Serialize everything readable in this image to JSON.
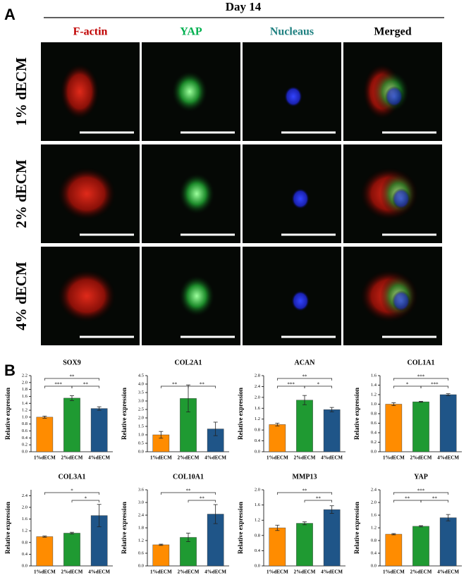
{
  "panel_a": {
    "label": "A",
    "title": "Day 14",
    "columns": [
      "F-actin",
      "YAP",
      "Nucleaus",
      "Merged"
    ],
    "rows": [
      "1% dECM",
      "2% dECM",
      "4% dECM"
    ]
  },
  "panel_b": {
    "label": "B"
  },
  "chart_data": [
    {
      "type": "bar",
      "title": "SOX9",
      "ylabel": "Relative expression",
      "categories": [
        "1%dECM",
        "2%dECM",
        "4%dECM"
      ],
      "values": [
        1.0,
        1.55,
        1.25
      ],
      "errors": [
        0.03,
        0.07,
        0.05
      ],
      "colors": [
        "#ff8c00",
        "#1f9a32",
        "#1f5588"
      ],
      "ylim": [
        0,
        2.2
      ],
      "yticks": [
        {
          "value": 0,
          "label": "0.0"
        },
        0.2,
        0.4,
        0.6,
        0.8,
        {
          "value": 1,
          "label": "1.0"
        },
        1.2,
        1.4,
        1.6,
        1.8,
        {
          "value": 2,
          "label": "2.0"
        },
        2.2
      ],
      "annotations": [
        {
          "label": "***",
          "between": [
            "1%dECM",
            "2%dECM"
          ]
        },
        {
          "label": "**",
          "between": [
            "2%dECM",
            "4%dECM"
          ]
        },
        {
          "label": "**",
          "between": [
            "1%dECM",
            "4%dECM"
          ]
        }
      ]
    },
    {
      "type": "bar",
      "title": "COL2A1",
      "ylabel": "Relative expression",
      "categories": [
        "1%dECM",
        "2%dECM",
        "4%dECM"
      ],
      "values": [
        1.0,
        3.15,
        1.35
      ],
      "errors": [
        0.2,
        0.8,
        0.4
      ],
      "colors": [
        "#ff8c00",
        "#1f9a32",
        "#1f5588"
      ],
      "ylim": [
        0,
        4.5
      ],
      "yticks": [
        {
          "value": 0,
          "label": "0.0"
        },
        0.5,
        {
          "value": 1,
          "label": "1.0"
        },
        1.5,
        {
          "value": 2,
          "label": "2.0"
        },
        2.5,
        {
          "value": 3,
          "label": "3.0"
        },
        3.5,
        {
          "value": 4,
          "label": "4.0"
        },
        4.5
      ],
      "annotations": [
        {
          "label": "**",
          "between": [
            "1%dECM",
            "2%dECM"
          ]
        },
        {
          "label": "**",
          "between": [
            "2%dECM",
            "4%dECM"
          ]
        }
      ]
    },
    {
      "type": "bar",
      "title": "ACAN",
      "ylabel": "Relative expression",
      "categories": [
        "1%dECM",
        "2%dECM",
        "4%dECM"
      ],
      "values": [
        1.0,
        1.9,
        1.55
      ],
      "errors": [
        0.05,
        0.17,
        0.08
      ],
      "colors": [
        "#ff8c00",
        "#1f9a32",
        "#1f5588"
      ],
      "ylim": [
        0,
        2.8
      ],
      "yticks": [
        {
          "value": 0,
          "label": "0.0"
        },
        0.4,
        0.8,
        1.2,
        1.6,
        {
          "value": 2,
          "label": "2.0"
        },
        2.4,
        2.8
      ],
      "annotations": [
        {
          "label": "***",
          "between": [
            "1%dECM",
            "2%dECM"
          ]
        },
        {
          "label": "*",
          "between": [
            "2%dECM",
            "4%dECM"
          ]
        },
        {
          "label": "**",
          "between": [
            "1%dECM",
            "4%dECM"
          ]
        }
      ]
    },
    {
      "type": "bar",
      "title": "COL1A1",
      "ylabel": "Relative expression",
      "categories": [
        "1%dECM",
        "2%dECM",
        "4%dECM"
      ],
      "values": [
        1.0,
        1.05,
        1.2
      ],
      "errors": [
        0.03,
        0.01,
        0.02
      ],
      "colors": [
        "#ff8c00",
        "#1f9a32",
        "#1f5588"
      ],
      "ylim": [
        0,
        1.6
      ],
      "yticks": [
        {
          "value": 0,
          "label": "0.0"
        },
        0.2,
        0.4,
        0.6,
        0.8,
        {
          "value": 1,
          "label": "1.0"
        },
        1.2,
        1.4,
        1.6
      ],
      "annotations": [
        {
          "label": "*",
          "between": [
            "1%dECM",
            "2%dECM"
          ]
        },
        {
          "label": "***",
          "between": [
            "2%dECM",
            "4%dECM"
          ]
        },
        {
          "label": "***",
          "between": [
            "1%dECM",
            "4%dECM"
          ]
        }
      ]
    },
    {
      "type": "bar",
      "title": "COL3A1",
      "ylabel": "Relative expression",
      "categories": [
        "1%dECM",
        "2%dECM",
        "4%dECM"
      ],
      "values": [
        1.0,
        1.12,
        1.72
      ],
      "errors": [
        0.02,
        0.03,
        0.38
      ],
      "colors": [
        "#ff8c00",
        "#1f9a32",
        "#1f5588"
      ],
      "ylim": [
        0,
        2.6
      ],
      "yticks": [
        {
          "value": 0,
          "label": "0.0"
        },
        0.4,
        0.8,
        1.2,
        1.6,
        {
          "value": 2,
          "label": "2.0"
        },
        2.4
      ],
      "annotations": [
        {
          "label": "*",
          "between": [
            "2%dECM",
            "4%dECM"
          ]
        },
        {
          "label": "*",
          "between": [
            "1%dECM",
            "4%dECM"
          ]
        }
      ]
    },
    {
      "type": "bar",
      "title": "COL10A1",
      "ylabel": "Relative expression",
      "categories": [
        "1%dECM",
        "2%dECM",
        "4%dECM"
      ],
      "values": [
        1.0,
        1.35,
        2.45
      ],
      "errors": [
        0.03,
        0.2,
        0.45
      ],
      "colors": [
        "#ff8c00",
        "#1f9a32",
        "#1f5588"
      ],
      "ylim": [
        0,
        3.6
      ],
      "yticks": [
        {
          "value": 0,
          "label": "0.0"
        },
        0.6,
        1.2,
        1.8,
        2.4,
        {
          "value": 3,
          "label": "3.0"
        },
        3.6
      ],
      "annotations": [
        {
          "label": "**",
          "between": [
            "2%dECM",
            "4%dECM"
          ]
        },
        {
          "label": "**",
          "between": [
            "1%dECM",
            "4%dECM"
          ]
        }
      ]
    },
    {
      "type": "bar",
      "title": "MMP13",
      "ylabel": "Relative expression",
      "categories": [
        "1%dECM",
        "2%dECM",
        "4%dECM"
      ],
      "values": [
        1.0,
        1.12,
        1.48
      ],
      "errors": [
        0.07,
        0.04,
        0.1
      ],
      "colors": [
        "#ff8c00",
        "#1f9a32",
        "#1f5588"
      ],
      "ylim": [
        0,
        2.0
      ],
      "yticks": [
        {
          "value": 0,
          "label": "0.0"
        },
        0.4,
        0.8,
        1.2,
        1.6,
        {
          "value": 2,
          "label": "2.0"
        }
      ],
      "annotations": [
        {
          "label": "**",
          "between": [
            "2%dECM",
            "4%dECM"
          ]
        },
        {
          "label": "**",
          "between": [
            "1%dECM",
            "4%dECM"
          ]
        }
      ]
    },
    {
      "type": "bar",
      "title": "YAP",
      "ylabel": "Relative expression",
      "categories": [
        "1%dECM",
        "2%dECM",
        "4%dECM"
      ],
      "values": [
        1.0,
        1.25,
        1.52
      ],
      "errors": [
        0.02,
        0.02,
        0.1
      ],
      "colors": [
        "#ff8c00",
        "#1f9a32",
        "#1f5588"
      ],
      "ylim": [
        0,
        2.4
      ],
      "yticks": [
        {
          "value": 0,
          "label": "0.0"
        },
        0.4,
        0.8,
        1.2,
        1.6,
        {
          "value": 2,
          "label": "2.0"
        },
        2.4
      ],
      "annotations": [
        {
          "label": "**",
          "between": [
            "1%dECM",
            "2%dECM"
          ]
        },
        {
          "label": "**",
          "between": [
            "2%dECM",
            "4%dECM"
          ]
        },
        {
          "label": "***",
          "between": [
            "1%dECM",
            "4%dECM"
          ]
        }
      ]
    }
  ]
}
